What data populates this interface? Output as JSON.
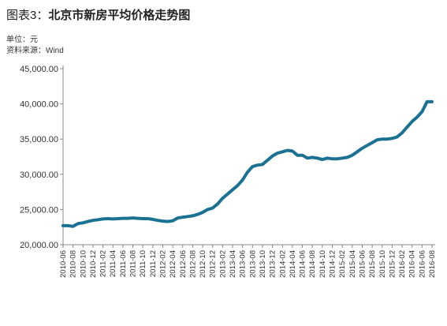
{
  "header": {
    "title_prefix": "图表3：",
    "title_main": "北京市新房平均价格走势图",
    "unit": "单位：元",
    "source": "资料来源：Wind"
  },
  "colors": {
    "line": "#1a7191",
    "axis": "#888888"
  },
  "chart_data": {
    "type": "line",
    "title": "北京市新房平均价格走势图",
    "ylim": [
      20000,
      45000
    ],
    "yticks": [
      "20,000.00",
      "25,000.00",
      "30,000.00",
      "35,000.00",
      "40,000.00",
      "45,000.00"
    ],
    "xticks": [
      "2010-06",
      "2010-08",
      "2010-10",
      "2010-12",
      "2011-02",
      "2011-04",
      "2011-06",
      "2011-08",
      "2011-10",
      "2011-12",
      "2012-02",
      "2012-04",
      "2012-06",
      "2012-08",
      "2012-10",
      "2012-12",
      "2013-02",
      "2013-04",
      "2013-06",
      "2013-08",
      "2013-10",
      "2013-12",
      "2014-02",
      "2014-04",
      "2014-06",
      "2014-08",
      "2014-10",
      "2014-12",
      "2015-02",
      "2015-04",
      "2015-06",
      "2015-08",
      "2015-10",
      "2015-12",
      "2016-02",
      "2016-04",
      "2016-06",
      "2016-08"
    ],
    "grid": false,
    "series": [
      {
        "x": [
          "2010-06",
          "2010-07",
          "2010-08",
          "2010-09",
          "2010-10",
          "2010-11",
          "2010-12",
          "2011-01",
          "2011-02",
          "2011-03",
          "2011-04",
          "2011-05",
          "2011-06",
          "2011-07",
          "2011-08",
          "2011-09",
          "2011-10",
          "2011-11",
          "2011-12",
          "2012-01",
          "2012-02",
          "2012-03",
          "2012-04",
          "2012-05",
          "2012-06",
          "2012-07",
          "2012-08",
          "2012-09",
          "2012-10",
          "2012-11",
          "2012-12",
          "2013-01",
          "2013-02",
          "2013-03",
          "2013-04",
          "2013-05",
          "2013-06",
          "2013-07",
          "2013-08",
          "2013-09",
          "2013-10",
          "2013-11",
          "2013-12",
          "2014-01",
          "2014-02",
          "2014-03",
          "2014-04",
          "2014-05",
          "2014-06",
          "2014-07",
          "2014-08",
          "2014-09",
          "2014-10",
          "2014-11",
          "2014-12",
          "2015-01",
          "2015-02",
          "2015-03",
          "2015-04",
          "2015-05",
          "2015-06",
          "2015-07",
          "2015-08",
          "2015-09",
          "2015-10",
          "2015-11",
          "2015-12",
          "2016-01",
          "2016-02",
          "2016-03",
          "2016-04",
          "2016-05",
          "2016-06",
          "2016-07",
          "2016-08"
        ],
        "values": [
          22700,
          22700,
          22600,
          23000,
          23100,
          23300,
          23450,
          23550,
          23650,
          23700,
          23650,
          23700,
          23750,
          23750,
          23800,
          23750,
          23700,
          23700,
          23600,
          23450,
          23350,
          23300,
          23400,
          23800,
          23900,
          24000,
          24100,
          24300,
          24600,
          25000,
          25200,
          25800,
          26600,
          27200,
          27800,
          28400,
          29200,
          30300,
          31100,
          31300,
          31400,
          32000,
          32600,
          33000,
          33200,
          33400,
          33300,
          32700,
          32700,
          32300,
          32400,
          32300,
          32100,
          32300,
          32200,
          32200,
          32300,
          32400,
          32700,
          33200,
          33700,
          34100,
          34500,
          34900,
          35000,
          35000,
          35100,
          35300,
          35900,
          36700,
          37500,
          38100,
          38900,
          40300,
          40300
        ]
      }
    ]
  }
}
